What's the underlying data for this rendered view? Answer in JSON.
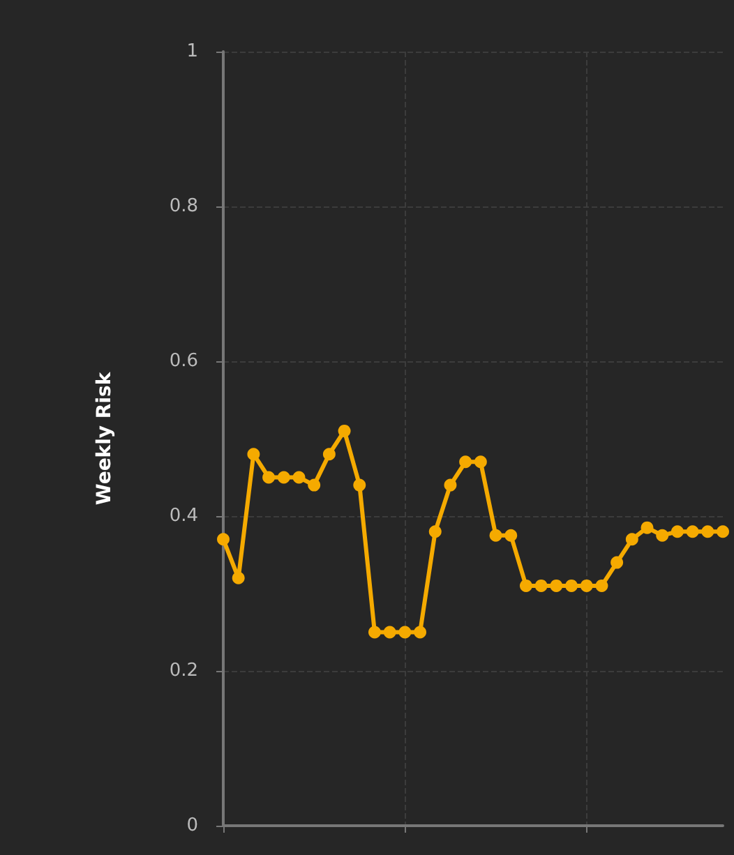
{
  "chart_data": {
    "type": "line",
    "ylabel": "Weekly Risk",
    "categories": [
      null,
      null,
      null,
      null,
      null,
      null,
      null,
      null,
      null,
      null,
      null,
      null,
      null,
      null,
      null,
      null,
      null,
      null,
      null,
      null,
      null,
      null,
      null,
      null,
      null,
      null,
      null,
      null,
      null,
      null,
      null,
      null,
      null,
      null
    ],
    "series": [
      {
        "color": "#f5aa00",
        "values": [
          0.37,
          0.32,
          0.48,
          0.45,
          0.45,
          0.45,
          0.44,
          0.48,
          0.51,
          0.44,
          0.25,
          0.25,
          0.25,
          0.25,
          0.38,
          0.44,
          0.47,
          0.47,
          0.375,
          0.375,
          0.31,
          0.31,
          0.31,
          0.31,
          0.31,
          0.31,
          0.34,
          0.37,
          0.385,
          0.375,
          0.38,
          0.38,
          0.38,
          0.38
        ]
      }
    ],
    "ylim": [
      0,
      1
    ],
    "yticks": [
      0,
      0.2,
      0.4,
      0.6,
      0.8,
      1
    ],
    "grid": true,
    "marker": "circle",
    "line_style": "solid",
    "tick_labels": "y"
  }
}
